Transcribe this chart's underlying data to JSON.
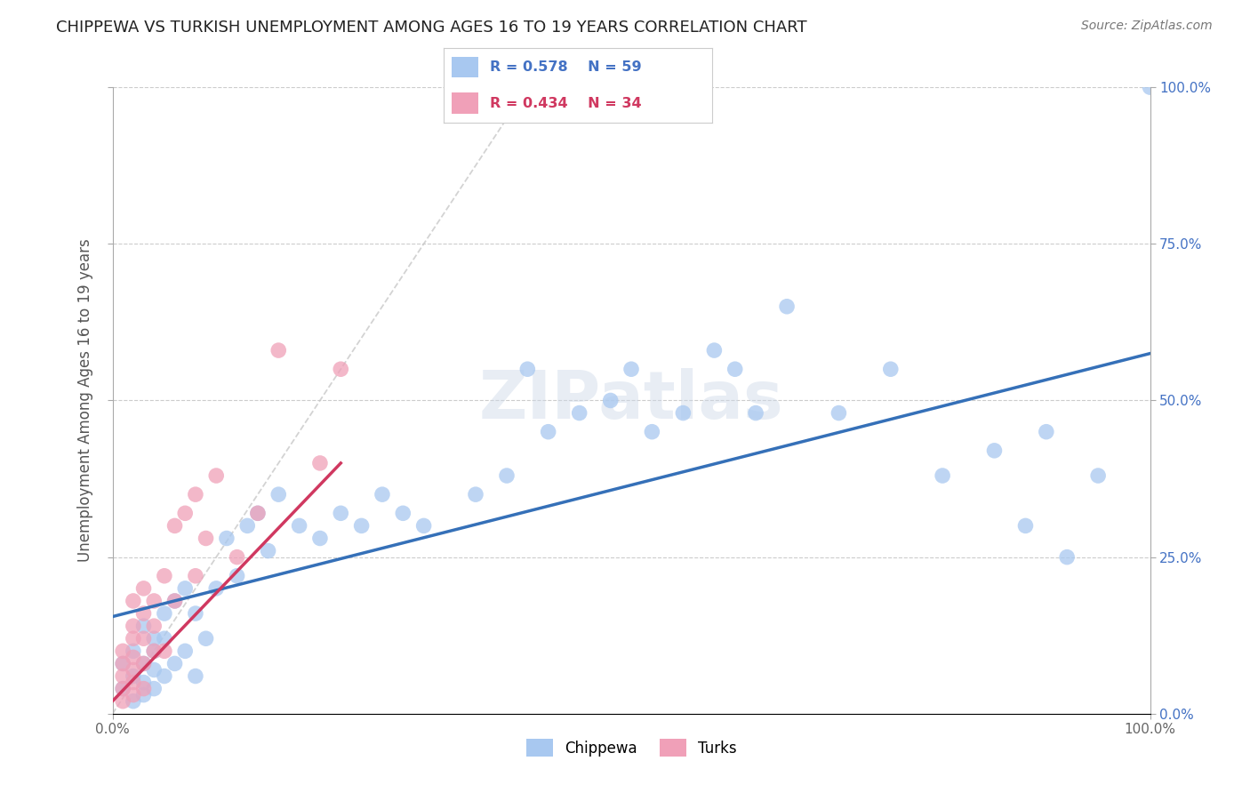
{
  "title": "CHIPPEWA VS TURKISH UNEMPLOYMENT AMONG AGES 16 TO 19 YEARS CORRELATION CHART",
  "source": "Source: ZipAtlas.com",
  "ylabel": "Unemployment Among Ages 16 to 19 years",
  "xlim": [
    0,
    1.0
  ],
  "ylim": [
    0,
    1.0
  ],
  "legend_r": [
    "R = 0.578",
    "R = 0.434"
  ],
  "legend_n": [
    "N = 59",
    "N = 34"
  ],
  "chippewa_color": "#a8c8f0",
  "turks_color": "#f0a0b8",
  "chippewa_line_color": "#3570b8",
  "turks_line_color": "#d03860",
  "ref_line_color": "#c8c8c8",
  "background_color": "#ffffff",
  "watermark": "ZIPatlas",
  "chippewa_x": [
    0.01,
    0.01,
    0.02,
    0.02,
    0.02,
    0.03,
    0.03,
    0.03,
    0.03,
    0.04,
    0.04,
    0.04,
    0.04,
    0.05,
    0.05,
    0.05,
    0.06,
    0.06,
    0.07,
    0.07,
    0.08,
    0.08,
    0.09,
    0.1,
    0.11,
    0.12,
    0.13,
    0.14,
    0.15,
    0.16,
    0.18,
    0.2,
    0.22,
    0.24,
    0.26,
    0.28,
    0.3,
    0.35,
    0.38,
    0.4,
    0.42,
    0.45,
    0.48,
    0.5,
    0.52,
    0.55,
    0.58,
    0.6,
    0.62,
    0.65,
    0.7,
    0.75,
    0.8,
    0.85,
    0.88,
    0.9,
    0.92,
    0.95,
    1.0
  ],
  "chippewa_y": [
    0.08,
    0.04,
    0.1,
    0.06,
    0.02,
    0.14,
    0.08,
    0.05,
    0.03,
    0.12,
    0.1,
    0.07,
    0.04,
    0.16,
    0.12,
    0.06,
    0.18,
    0.08,
    0.2,
    0.1,
    0.16,
    0.06,
    0.12,
    0.2,
    0.28,
    0.22,
    0.3,
    0.32,
    0.26,
    0.35,
    0.3,
    0.28,
    0.32,
    0.3,
    0.35,
    0.32,
    0.3,
    0.35,
    0.38,
    0.55,
    0.45,
    0.48,
    0.5,
    0.55,
    0.45,
    0.48,
    0.58,
    0.55,
    0.48,
    0.65,
    0.48,
    0.55,
    0.38,
    0.42,
    0.3,
    0.45,
    0.25,
    0.38,
    1.0
  ],
  "turks_x": [
    0.01,
    0.01,
    0.01,
    0.01,
    0.01,
    0.02,
    0.02,
    0.02,
    0.02,
    0.02,
    0.02,
    0.02,
    0.03,
    0.03,
    0.03,
    0.03,
    0.03,
    0.04,
    0.04,
    0.04,
    0.05,
    0.05,
    0.06,
    0.06,
    0.07,
    0.08,
    0.08,
    0.09,
    0.1,
    0.12,
    0.14,
    0.16,
    0.2,
    0.22
  ],
  "turks_y": [
    0.04,
    0.06,
    0.08,
    0.1,
    0.02,
    0.05,
    0.07,
    0.09,
    0.12,
    0.14,
    0.03,
    0.18,
    0.08,
    0.12,
    0.16,
    0.2,
    0.04,
    0.1,
    0.14,
    0.18,
    0.22,
    0.1,
    0.3,
    0.18,
    0.32,
    0.35,
    0.22,
    0.28,
    0.38,
    0.25,
    0.32,
    0.58,
    0.4,
    0.55
  ],
  "chippewa_line_x0": 0.0,
  "chippewa_line_y0": 0.155,
  "chippewa_line_x1": 1.0,
  "chippewa_line_y1": 0.575,
  "turks_line_x0": 0.0,
  "turks_line_y0": 0.02,
  "turks_line_x1": 0.22,
  "turks_line_y1": 0.4
}
